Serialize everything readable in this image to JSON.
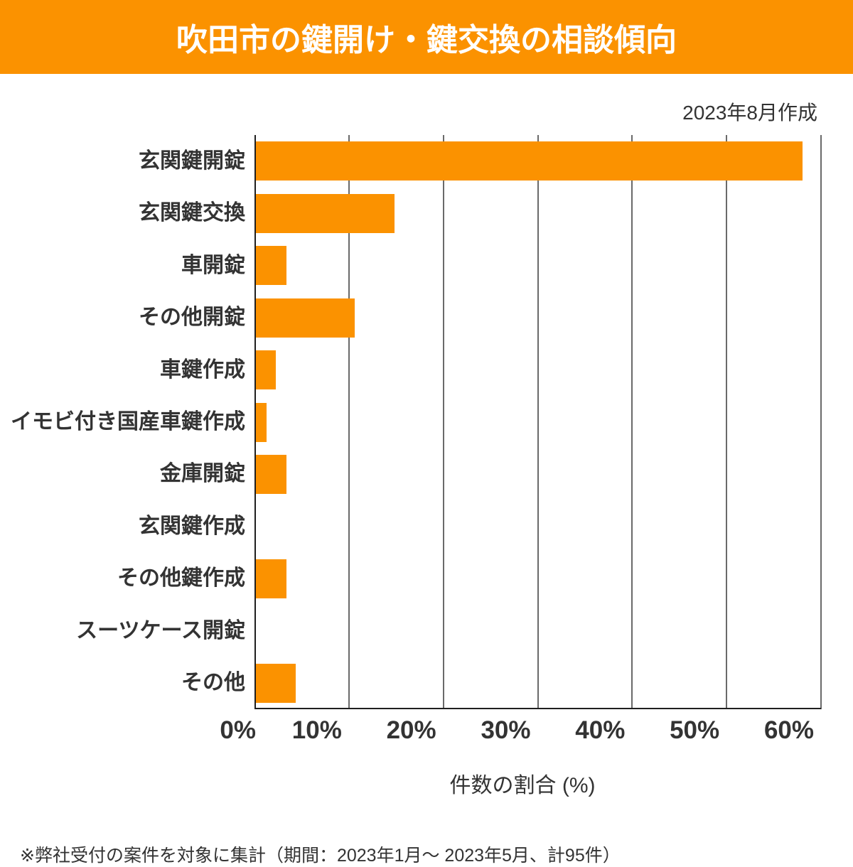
{
  "header": {
    "title": "吹田市の鍵開け・鍵交換の相談傾向",
    "bg_color": "#FB9200",
    "text_color": "#FFFFFF"
  },
  "meta": {
    "created_note": "2023年8月作成"
  },
  "chart_data": {
    "type": "bar",
    "orientation": "horizontal",
    "title": "吹田市の鍵開け・鍵交換の相談傾向",
    "categories": [
      "玄関鍵開錠",
      "玄関鍵交換",
      "車開錠",
      "その他開錠",
      "車鍵作成",
      "イモビ付き国産車鍵作成",
      "金庫開錠",
      "玄関鍵作成",
      "その他鍵作成",
      "スーツケース開錠",
      "その他"
    ],
    "values": [
      57.9,
      14.7,
      3.2,
      10.5,
      2.1,
      1.1,
      3.2,
      0,
      3.2,
      0,
      4.2
    ],
    "unit": "%",
    "xlabel": "件数の割合 (%)",
    "xlim": [
      0,
      60
    ],
    "xticks": [
      "0%",
      "10%",
      "20%",
      "30%",
      "40%",
      "50%",
      "60%"
    ],
    "bar_color": "#FB9200",
    "grid": "vertical",
    "legend": "none"
  },
  "footer": {
    "note": "※弊社受付の案件を対象に集計（期間：2023年1月～ 2023年5月、計95件）"
  }
}
